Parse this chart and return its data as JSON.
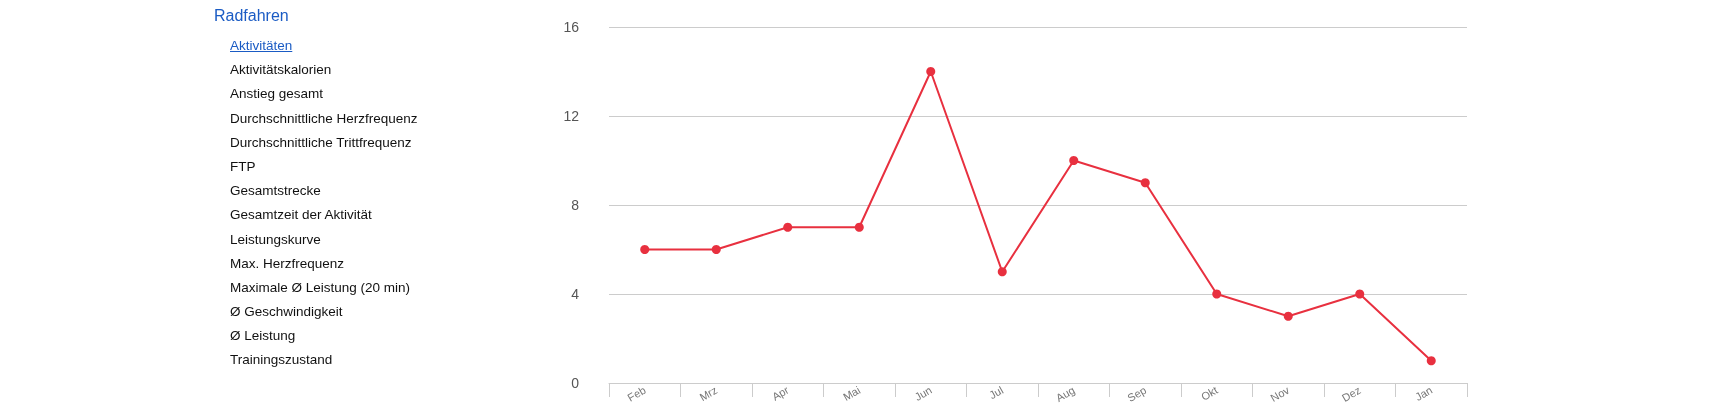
{
  "chart_data": {
    "type": "line",
    "title": "Radfahren",
    "annotations": [
      "Aktivitäten",
      "Aktivitätskalorien",
      "Anstieg gesamt",
      "Durchschnittliche Herzfrequenz",
      "Durchschnittliche Trittfrequenz",
      "FTP",
      "Gesamtstrecke",
      "Gesamtzeit der Aktivität",
      "Leistungskurve",
      "Max. Herzfrequenz",
      "Maximale Ø Leistung (20 min)",
      "Ø Geschwindigkeit",
      "Ø Leistung",
      "Trainingszustand"
    ],
    "categories": [
      "Feb",
      "Mrz",
      "Apr",
      "Mai",
      "Jun",
      "Jul",
      "Aug",
      "Sep",
      "Okt",
      "Nov",
      "Dez",
      "Jan"
    ],
    "series": [
      {
        "color": "#e8303f",
        "values": [
          6,
          6,
          7,
          7,
          14,
          5,
          10,
          9,
          4,
          3,
          4,
          1
        ]
      }
    ],
    "ylim": [
      0,
      16
    ],
    "yticks": [
      0,
      4,
      8,
      12,
      16
    ],
    "grid": "y",
    "marker": "circle",
    "line_style": "solid"
  }
}
